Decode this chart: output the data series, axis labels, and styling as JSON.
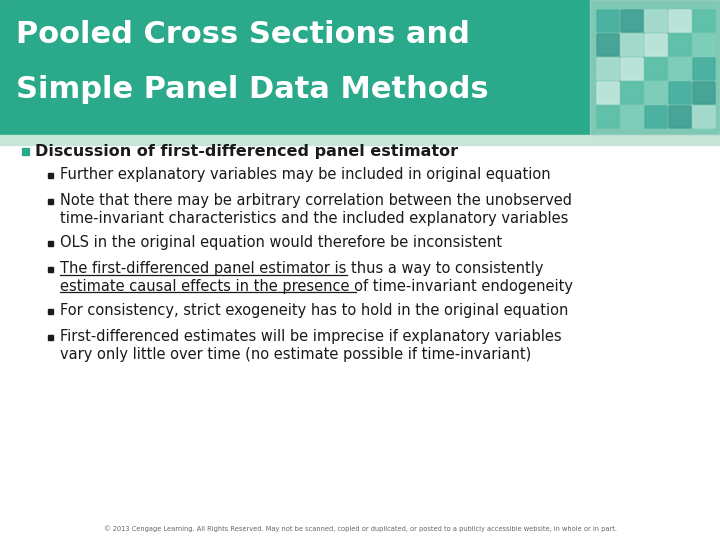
{
  "title_line1": "Pooled Cross Sections and",
  "title_line2": "Simple Panel Data Methods",
  "title_bg_color": "#2aaa8a",
  "title_text_color": "#ffffff",
  "header_strip_color": "#c8e6d8",
  "bg_color": "#ffffff",
  "footer_text": "© 2013 Cengage Learning. All Rights Reserved. May not be scanned, copied or duplicated, or posted to a publicly accessible website, in whole or in part.",
  "footer_color": "#666666",
  "bullet1_text": "Discussion of first-differenced panel estimator",
  "sub_bullets": [
    {
      "text": "Further explanatory variables may be included in original equation",
      "underline": false,
      "lines": 1
    },
    {
      "text": "Note that there may be arbitrary correlation between the unobserved\ntime-invariant characteristics and the included explanatory variables",
      "underline": false,
      "lines": 2
    },
    {
      "text": "OLS in the original equation would therefore be inconsistent",
      "underline": false,
      "lines": 1
    },
    {
      "text": "The first-differenced panel estimator is thus a way to consistently\nestimate causal effects in the presence of time-invariant endogeneity",
      "underline": true,
      "lines": 2
    },
    {
      "text": "For consistency, strict exogeneity has to hold in the original equation",
      "underline": false,
      "lines": 1
    },
    {
      "text": "First-differenced estimates will be imprecise if explanatory variables\nvary only little over time (no estimate possible if time-invariant)",
      "underline": false,
      "lines": 2
    }
  ],
  "main_bullet_color": "#2aaa8a",
  "text_color": "#1a1a1a",
  "title_font_size": 22,
  "bullet1_font_size": 11.5,
  "sub_font_size": 10.5
}
